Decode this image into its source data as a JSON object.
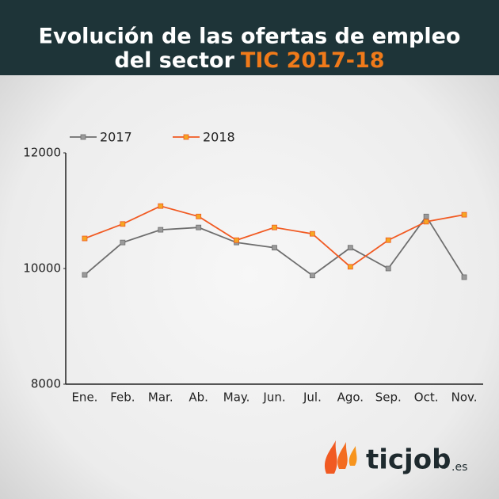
{
  "chart_data": {
    "type": "line",
    "title": "Evolución de las ofertas de empleo",
    "title_line2": "del sector",
    "title_highlight": "TIC 2017-18",
    "categories": [
      "Ene.",
      "Feb.",
      "Mar.",
      "Ab.",
      "May.",
      "Jun.",
      "Jul.",
      "Ago.",
      "Sep.",
      "Oct.",
      "Nov."
    ],
    "series": [
      {
        "name": "2017",
        "color": "#6e6e6e",
        "marker_color": "#9a9a9a",
        "values": [
          9890,
          10450,
          10670,
          10710,
          10450,
          10360,
          9880,
          10360,
          10000,
          10900,
          9850
        ]
      },
      {
        "name": "2018",
        "color": "#f15a22",
        "marker_color": "#f5a623",
        "values": [
          10520,
          10770,
          11080,
          10900,
          10490,
          10710,
          10600,
          10030,
          10490,
          10810,
          10930
        ]
      }
    ],
    "ylim": [
      8000,
      12000
    ],
    "yticks": [
      8000,
      10000,
      12000
    ],
    "grid": false,
    "legend": "top-left"
  },
  "logo": {
    "name": "ticjob",
    "suffix": ".es"
  }
}
